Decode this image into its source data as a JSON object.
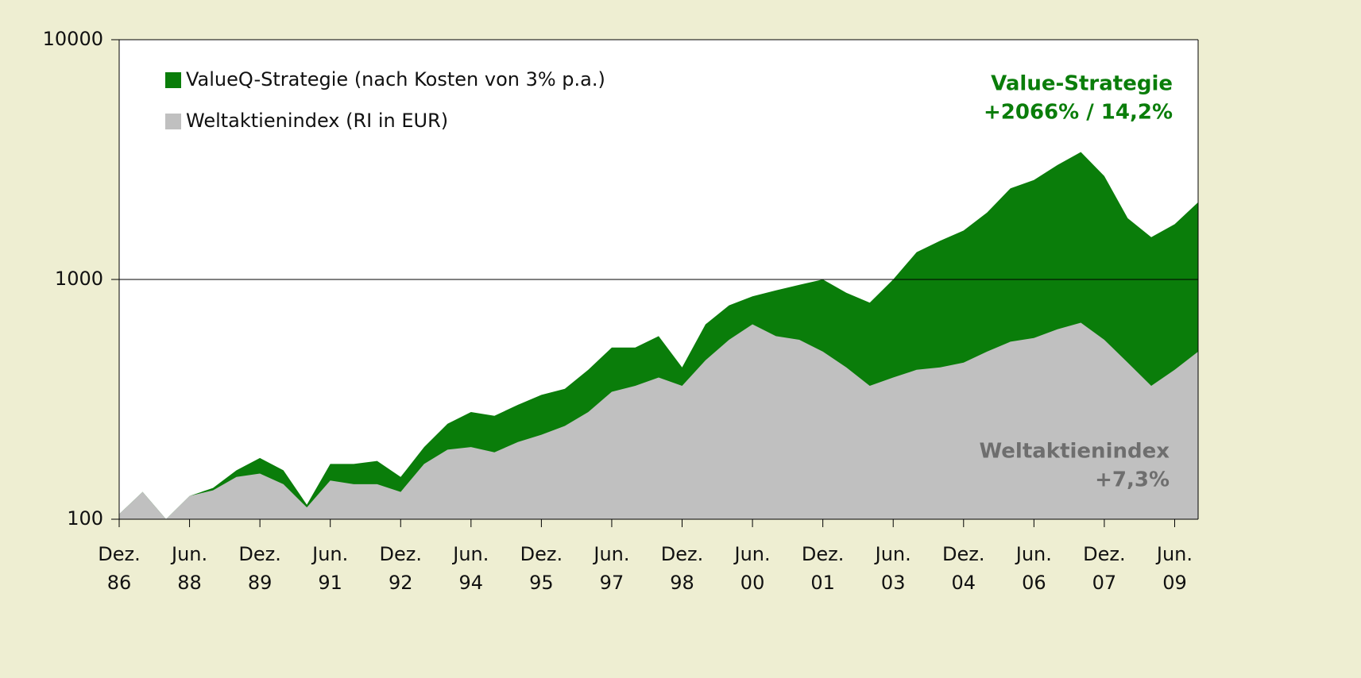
{
  "chart_data": {
    "type": "area",
    "categories": [
      "Dez. 86",
      null,
      null,
      "Jun. 88",
      null,
      null,
      "Dez. 89",
      null,
      null,
      "Jun. 91",
      null,
      null,
      "Dez. 92",
      null,
      null,
      "Jun. 94",
      null,
      null,
      "Dez. 95",
      null,
      null,
      "Jun. 97",
      null,
      null,
      "Dez. 98",
      null,
      null,
      "Jun. 00",
      null,
      null,
      "Dez. 01",
      null,
      null,
      "Jun. 03",
      null,
      null,
      "Dez. 04",
      null,
      null,
      "Jun. 06",
      null,
      null,
      "Dez. 07",
      null,
      null,
      "Jun. 09",
      null
    ],
    "series": [
      {
        "name": "ValueQ-Strategie (nach Kosten von 3% p.a.)",
        "color": "#0a7d0a",
        "values": [
          105,
          130,
          100,
          125,
          135,
          160,
          180,
          160,
          115,
          170,
          170,
          175,
          150,
          200,
          250,
          280,
          270,
          300,
          330,
          350,
          420,
          520,
          520,
          580,
          430,
          650,
          780,
          850,
          900,
          950,
          1000,
          880,
          800,
          1000,
          1300,
          1450,
          1600,
          1900,
          2400,
          2600,
          3000,
          3400,
          2700,
          1800,
          1500,
          1700,
          2100
        ]
      },
      {
        "name": "Weltaktienindex (RI in EUR)",
        "color": "#c0c0c0",
        "values": [
          105,
          130,
          100,
          125,
          132,
          150,
          155,
          140,
          112,
          145,
          140,
          140,
          130,
          170,
          195,
          200,
          190,
          210,
          225,
          245,
          280,
          340,
          360,
          390,
          360,
          460,
          560,
          650,
          580,
          560,
          500,
          430,
          360,
          390,
          420,
          430,
          450,
          500,
          550,
          570,
          620,
          660,
          560,
          450,
          360,
          420,
          500
        ]
      }
    ],
    "log_scale": true,
    "ylim": [
      100,
      10000
    ],
    "yticks": [
      100,
      1000,
      10000
    ],
    "grid": true,
    "legend": "top-left",
    "annotations": [
      {
        "text": "Value-Strategie",
        "color": "#0a7d0a"
      },
      {
        "text": "+2066% / 14,2%",
        "color": "#0a7d0a"
      },
      {
        "text": "Weltaktienindex",
        "color": "#6e6e6e"
      },
      {
        "text": "+7,3%",
        "color": "#6e6e6e"
      }
    ]
  }
}
